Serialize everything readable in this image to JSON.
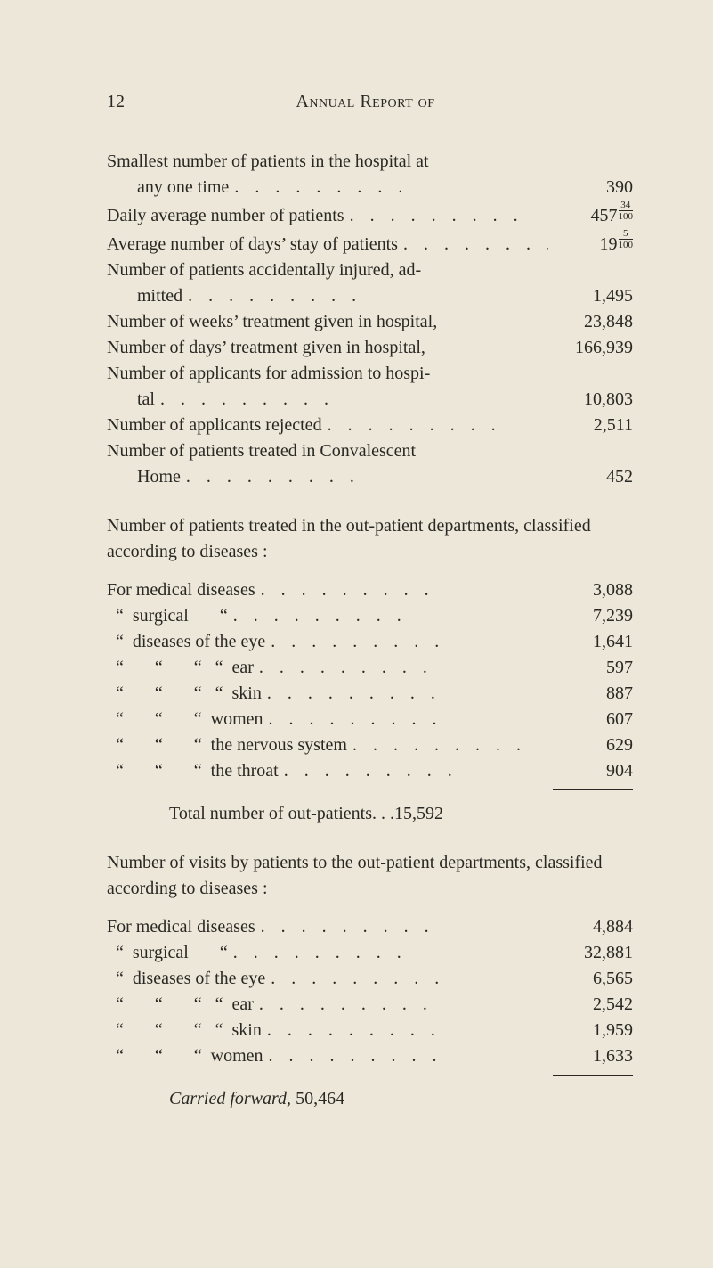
{
  "page_number": "12",
  "running_title": "Annual Report of",
  "leader_dots": ".........",
  "section1": {
    "rows": [
      {
        "label": "Smallest number of patients in the hospital at",
        "value": "",
        "leaders": false
      },
      {
        "label": "any one time",
        "value": "390",
        "indent": 1,
        "leaders": true
      },
      {
        "label": "Daily average number of patients",
        "value_int": "457",
        "value_frac_n": "34",
        "value_frac_d": "100",
        "leaders": true
      },
      {
        "label": "Average number of days’ stay of patients",
        "value_int": "19",
        "value_frac_n": "5",
        "value_frac_d": "100",
        "leaders": true
      },
      {
        "label": "Number of patients accidentally injured, ad-",
        "value": "",
        "leaders": false
      },
      {
        "label": "mitted",
        "value": "1,495",
        "indent": 1,
        "leaders": true
      },
      {
        "label": "Number of weeks’ treatment given in hospital,",
        "value": "23,848",
        "leaders": false
      },
      {
        "label": "Number of days’ treatment given in hospital,",
        "value": "166,939",
        "leaders": false
      },
      {
        "label": "Number of applicants for admission to hospi-",
        "value": "",
        "leaders": false
      },
      {
        "label": "tal",
        "value": "10,803",
        "indent": 1,
        "leaders": true
      },
      {
        "label": "Number of applicants rejected",
        "value": "2,511",
        "leaders": true
      },
      {
        "label": "Number of patients treated in Convalescent",
        "value": "",
        "leaders": false
      },
      {
        "label": "Home",
        "value": "452",
        "indent": 1,
        "leaders": true
      }
    ]
  },
  "para1": "Number of patients treated in the out-patient departments, classified according to diseases :",
  "section2": {
    "rows": [
      {
        "label": "For medical diseases",
        "value": "3,088"
      },
      {
        "label": "  “  surgical       “",
        "value": "7,239"
      },
      {
        "label": "  “  diseases of the eye",
        "value": "1,641"
      },
      {
        "label": "  “       “       “   “  ear",
        "value": "597"
      },
      {
        "label": "  “       “       “   “  skin",
        "value": "887"
      },
      {
        "label": "  “       “       “  women",
        "value": "607"
      },
      {
        "label": "  “       “       “  the nervous system",
        "value": "629"
      },
      {
        "label": "  “       “       “  the throat",
        "value": "904"
      }
    ],
    "total_label": "Total number of out-patients",
    "total_value": "15,592"
  },
  "para2": "Number of visits by patients to the out-patient departments, classified according to diseases :",
  "section3": {
    "rows": [
      {
        "label": "For medical diseases",
        "value": "4,884"
      },
      {
        "label": "  “  surgical       “",
        "value": "32,881"
      },
      {
        "label": "  “  diseases of the eye",
        "value": "6,565"
      },
      {
        "label": "  “       “       “   “  ear",
        "value": "2,542"
      },
      {
        "label": "  “       “       “   “  skin",
        "value": "1,959"
      },
      {
        "label": "  “       “       “  women",
        "value": "1,633"
      }
    ],
    "carried_label": "Carried forward,",
    "carried_value": "50,464"
  }
}
